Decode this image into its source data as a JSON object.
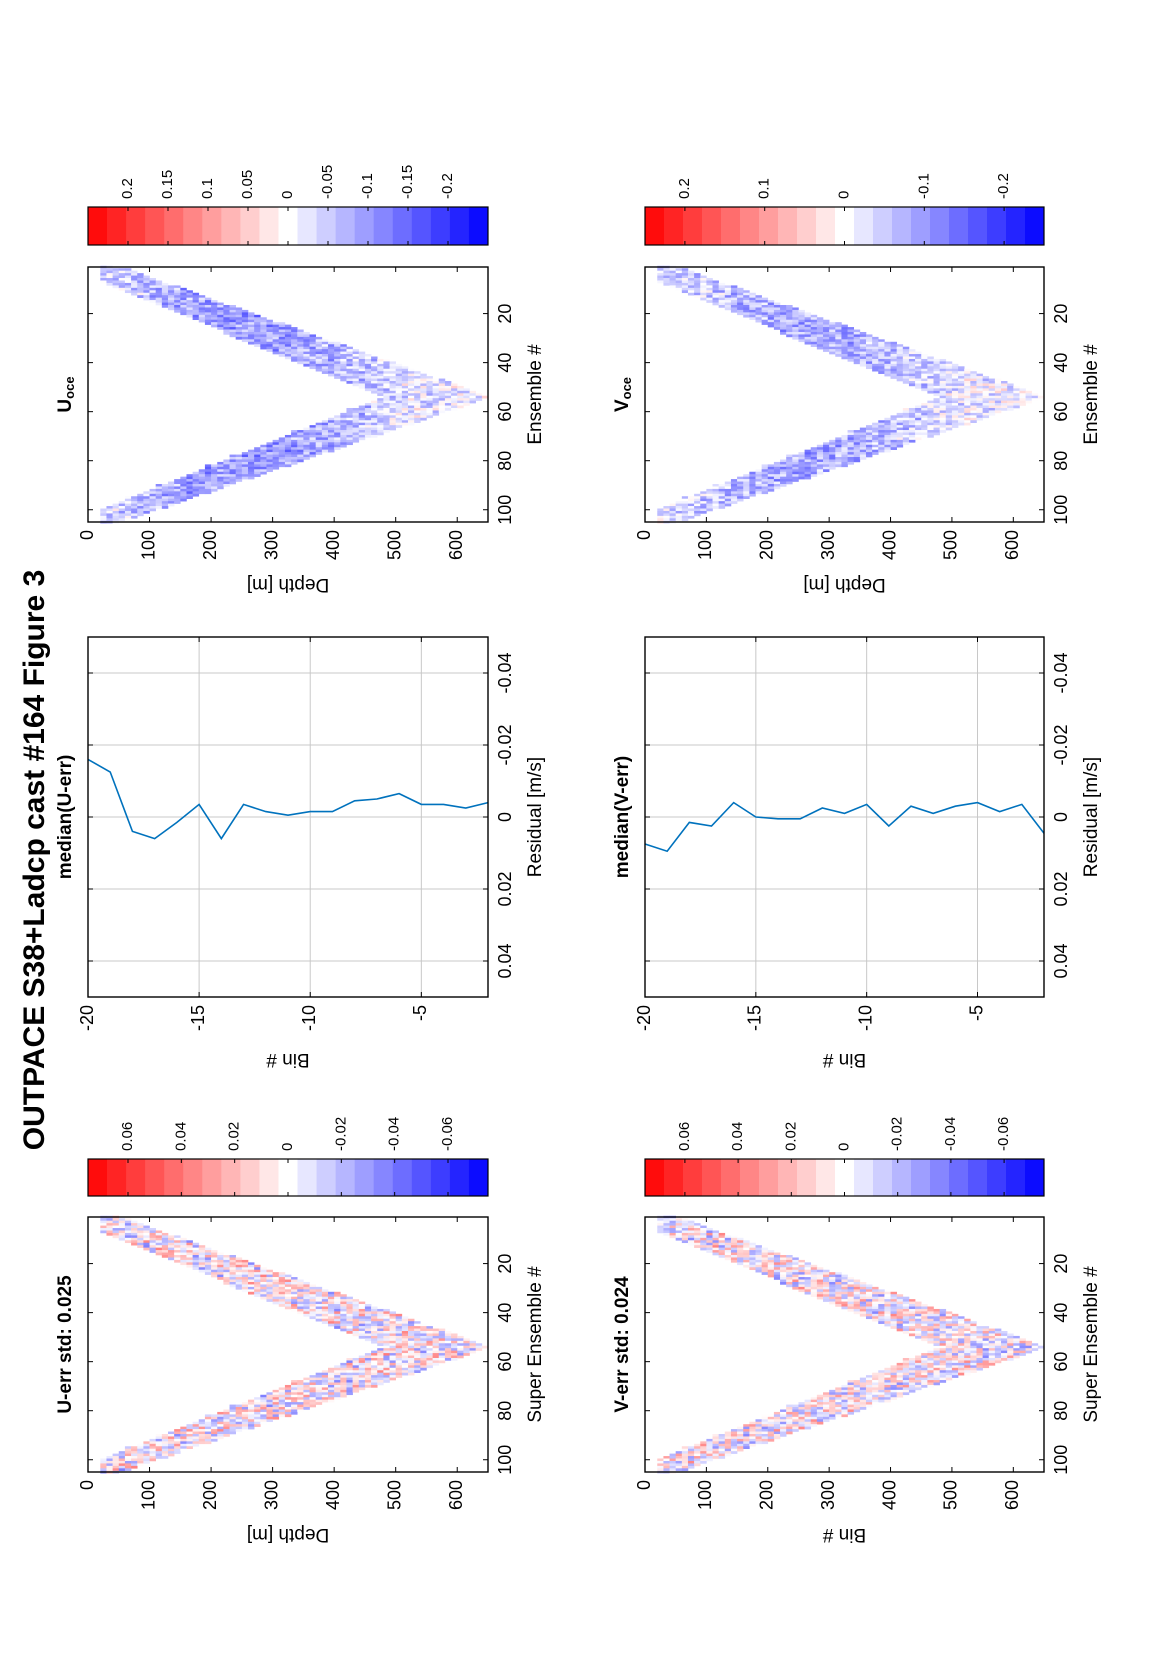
{
  "figure": {
    "title": "OUTPACE S38+Ladcp cast #164  Figure 3"
  },
  "chart_data": [
    {
      "id": "u-err-heatmap",
      "type": "heatmap",
      "title": "U-err std: 0.025",
      "xlabel": "Super Ensemble #",
      "ylabel": "Depth [m]",
      "xlim": [
        1,
        105
      ],
      "ylim": [
        0,
        650
      ],
      "xticks": [
        20,
        40,
        60,
        80,
        100
      ],
      "yticks": [
        0,
        100,
        200,
        300,
        400,
        500,
        600
      ],
      "profile": {
        "start_depth": 40,
        "max_depth": 640,
        "turn_ensemble": 54,
        "band_shallow": 70,
        "band_deep": 160
      },
      "colorbar": {
        "range": [
          -0.075,
          0.075
        ],
        "ticks": [
          0.06,
          0.04,
          0.02,
          0,
          -0.02,
          -0.04,
          -0.06
        ],
        "tick_labels": [
          "0.06",
          "0.04",
          "0.02",
          "0",
          "-0.02",
          "-0.04",
          "-0.06"
        ]
      },
      "colors": {
        "positive": "#ff0000",
        "zero": "#ffffff",
        "negative": "#0000ff"
      },
      "seed": 11,
      "amplitude": 0.03,
      "bias": 0.0
    },
    {
      "id": "u-err-median",
      "type": "line",
      "title": "median(U-err)",
      "xlabel": "Residual [m/s]",
      "ylabel": "Bin #",
      "xlim": [
        -0.05,
        0.05
      ],
      "ylim": [
        -20,
        -2
      ],
      "xticks": [
        -0.04,
        -0.02,
        0,
        0.02,
        0.04
      ],
      "xtick_labels": [
        "-0.04",
        "-0.02",
        "0",
        "0.02",
        "0.04"
      ],
      "yticks": [
        -5,
        -10,
        -15,
        -20
      ],
      "ytick_labels": [
        "-5",
        "-10",
        "-15",
        "-20"
      ],
      "grid": true,
      "series": [
        {
          "color": "#0072bd",
          "bin": [
            -2,
            -3,
            -4,
            -5,
            -6,
            -7,
            -8,
            -9,
            -10,
            -11,
            -12,
            -13,
            -14,
            -15,
            -16,
            -17,
            -18,
            -19,
            -20
          ],
          "residual": [
            -0.004,
            -0.0025,
            -0.0035,
            -0.0035,
            -0.0065,
            -0.005,
            -0.0045,
            -0.0015,
            -0.0015,
            -0.0005,
            -0.0015,
            -0.0035,
            0.006,
            -0.0035,
            0.0015,
            0.006,
            0.004,
            -0.0125,
            -0.016
          ]
        }
      ]
    },
    {
      "id": "u-oce-heatmap",
      "type": "heatmap",
      "title": "U",
      "title_sub": "oce",
      "xlabel": "Ensemble #",
      "ylabel": "Depth [m]",
      "xlim": [
        1,
        105
      ],
      "ylim": [
        0,
        650
      ],
      "xticks": [
        20,
        40,
        60,
        80,
        100
      ],
      "yticks": [
        0,
        100,
        200,
        300,
        400,
        500,
        600
      ],
      "profile": {
        "start_depth": 40,
        "max_depth": 640,
        "turn_ensemble": 54,
        "band_shallow": 70,
        "band_deep": 160
      },
      "colorbar": {
        "range": [
          -0.25,
          0.25
        ],
        "ticks": [
          0.2,
          0.15,
          0.1,
          0.05,
          0,
          -0.05,
          -0.1,
          -0.15,
          -0.2
        ],
        "tick_labels": [
          "0.2",
          "0.15",
          "0.1",
          "0.05",
          "0",
          "-0.05",
          "-0.1",
          "-0.15",
          "-0.2"
        ]
      },
      "colors": {
        "positive": "#ff0000",
        "zero": "#ffffff",
        "negative": "#0000ff"
      },
      "seed": 23,
      "amplitude": 0.06,
      "bias": -0.06
    },
    {
      "id": "v-err-heatmap",
      "type": "heatmap",
      "title": "V-err std: 0.024",
      "xlabel": "Super Ensemble #",
      "ylabel": "Bin #",
      "xlim": [
        1,
        105
      ],
      "ylim": [
        0,
        650
      ],
      "xticks": [
        20,
        40,
        60,
        80,
        100
      ],
      "yticks": [
        0,
        100,
        200,
        300,
        400,
        500,
        600
      ],
      "profile": {
        "start_depth": 40,
        "max_depth": 640,
        "turn_ensemble": 54,
        "band_shallow": 70,
        "band_deep": 160
      },
      "colorbar": {
        "range": [
          -0.075,
          0.075
        ],
        "ticks": [
          0.06,
          0.04,
          0.02,
          0,
          -0.02,
          -0.04,
          -0.06
        ],
        "tick_labels": [
          "0.06",
          "0.04",
          "0.02",
          "0",
          "-0.02",
          "-0.04",
          "-0.06"
        ]
      },
      "colors": {
        "positive": "#ff0000",
        "zero": "#ffffff",
        "negative": "#0000ff"
      },
      "seed": 37,
      "amplitude": 0.03,
      "bias": 0.0
    },
    {
      "id": "v-err-median",
      "type": "line",
      "title": "median(V-err)",
      "xlabel": "Residual [m/s]",
      "ylabel": "Bin #",
      "xlim": [
        -0.05,
        0.05
      ],
      "ylim": [
        -20,
        -2
      ],
      "xticks": [
        -0.04,
        -0.02,
        0,
        0.02,
        0.04
      ],
      "xtick_labels": [
        "-0.04",
        "-0.02",
        "0",
        "0.02",
        "0.04"
      ],
      "yticks": [
        -5,
        -10,
        -15,
        -20
      ],
      "ytick_labels": [
        "-5",
        "-10",
        "-15",
        "-20"
      ],
      "grid": true,
      "series": [
        {
          "color": "#0072bd",
          "bin": [
            -2,
            -3,
            -4,
            -5,
            -6,
            -7,
            -8,
            -9,
            -10,
            -11,
            -12,
            -13,
            -14,
            -15,
            -16,
            -17,
            -18,
            -19,
            -20
          ],
          "residual": [
            0.0045,
            -0.0035,
            -0.0015,
            -0.004,
            -0.003,
            -0.001,
            -0.003,
            0.0025,
            -0.0035,
            -0.001,
            -0.0025,
            0.0005,
            0.0005,
            0.0,
            -0.004,
            0.0025,
            0.0015,
            0.0095,
            0.0075
          ]
        }
      ]
    },
    {
      "id": "v-oce-heatmap",
      "type": "heatmap",
      "title": "V",
      "title_sub": "oce",
      "xlabel": "Ensemble #",
      "ylabel": "Depth [m]",
      "xlim": [
        1,
        105
      ],
      "ylim": [
        0,
        650
      ],
      "xticks": [
        20,
        40,
        60,
        80,
        100
      ],
      "yticks": [
        0,
        100,
        200,
        300,
        400,
        500,
        600
      ],
      "profile": {
        "start_depth": 40,
        "max_depth": 640,
        "turn_ensemble": 54,
        "band_shallow": 70,
        "band_deep": 160
      },
      "colorbar": {
        "range": [
          -0.25,
          0.25
        ],
        "ticks": [
          0.2,
          0.1,
          0,
          -0.1,
          -0.2
        ],
        "tick_labels": [
          "0.2",
          "0.1",
          "0",
          "-0.1",
          "-0.2"
        ]
      },
      "colors": {
        "positive": "#ff0000",
        "zero": "#ffffff",
        "negative": "#0000ff"
      },
      "seed": 53,
      "amplitude": 0.06,
      "bias": -0.05
    }
  ]
}
